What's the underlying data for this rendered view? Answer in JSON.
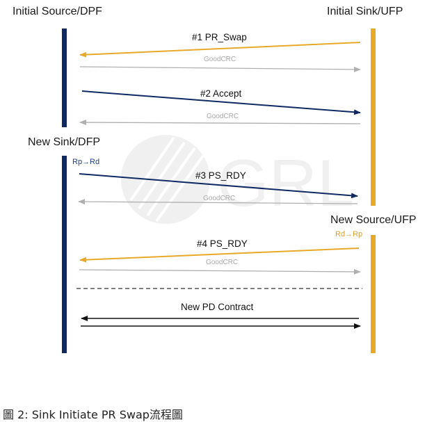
{
  "headers": {
    "initial_source": "Initial Source/DPF",
    "initial_sink": "Initial Sink/UFP",
    "new_sink": "New Sink/DFP",
    "new_source": "New Source/UFP"
  },
  "role_tags": {
    "left": "Rp→Rd",
    "right": "Rd→Rp"
  },
  "messages": {
    "m1": "#1 PR_Swap",
    "m2": "#2 Accept",
    "m3": "#3 PS_RDY",
    "m4": "#4 PS_RDY",
    "contract": "New PD Contract"
  },
  "ack_label": "GoodCRC",
  "watermark": "GRL",
  "caption": "圖 2: Sink Initiate PR Swap流程圖",
  "colors": {
    "navy": "#0f2a63",
    "gold": "#e8a92b",
    "gray": "#b0b0b0",
    "black": "#111111",
    "tag_blue": "#1d3f8f",
    "tag_gold": "#e0a030"
  }
}
